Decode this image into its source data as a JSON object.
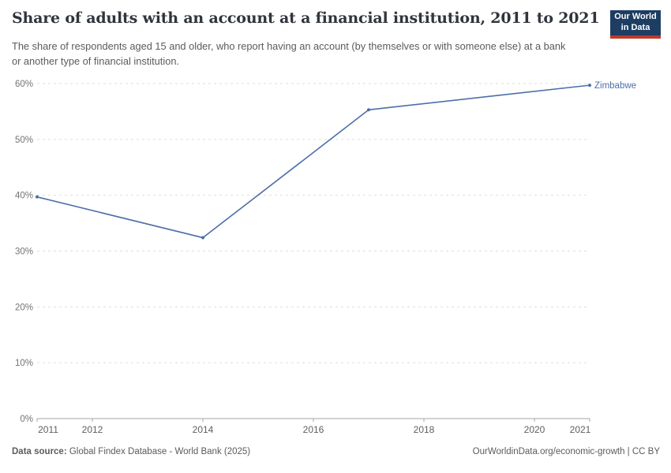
{
  "header": {
    "title": "Share of adults with an account at a financial institution, 2011 to 2021",
    "subtitle": "The share of respondents aged 15 and older, who report having an account (by themselves or with someone else) at a bank or another type of financial institution.",
    "logo": {
      "line1": "Our World",
      "line2": "in Data",
      "background_color": "#1d3d63",
      "accent_color": "#c0392b"
    }
  },
  "chart_data": {
    "type": "line",
    "title": "Share of adults with an account at a financial institution, 2011 to 2021",
    "x": [
      2011,
      2014,
      2017,
      2021
    ],
    "series": [
      {
        "name": "Zimbabwe",
        "values": [
          39.7,
          32.4,
          55.3,
          59.7
        ],
        "color": "#4c6ea9"
      }
    ],
    "x_ticks": [
      2011,
      2012,
      2014,
      2016,
      2018,
      2020,
      2021
    ],
    "y_ticks": [
      0,
      10,
      20,
      30,
      40,
      50,
      60
    ],
    "y_tick_suffix": "%",
    "xlim": [
      2011,
      2021
    ],
    "ylim": [
      0,
      60
    ],
    "grid": "horizontal-dashed",
    "gridline_color": "#dedede",
    "axis_color": "#a5a5a5",
    "legend_position": "end-of-line-label"
  },
  "footer": {
    "source_label": "Data source:",
    "source_value": " Global Findex Database - World Bank (2025)",
    "link": "OurWorldinData.org/economic-growth | CC BY"
  }
}
